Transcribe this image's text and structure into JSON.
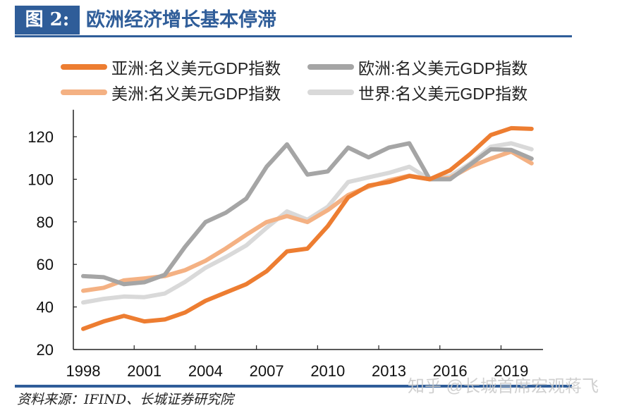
{
  "header": {
    "figure_label": "图 2:",
    "title": "欧洲经济增长基本停滞"
  },
  "footer": {
    "source": "资料来源：IFIND、长城证券研究院",
    "watermark": "知乎 @长城首席宏观蒋飞"
  },
  "chart_data": {
    "type": "line",
    "title": "",
    "xlabel": "",
    "ylabel": "",
    "ylim": [
      20,
      130
    ],
    "yticks": [
      20,
      40,
      60,
      80,
      100,
      120
    ],
    "x": [
      1998,
      1999,
      2000,
      2001,
      2002,
      2003,
      2004,
      2005,
      2006,
      2007,
      2008,
      2009,
      2010,
      2011,
      2012,
      2013,
      2014,
      2015,
      2016,
      2017,
      2018,
      2019,
      2020
    ],
    "xtick_labels": [
      "1998",
      "2001",
      "2004",
      "2007",
      "2010",
      "2013",
      "2016",
      "2019"
    ],
    "grid": false,
    "legend_position": "top",
    "series": [
      {
        "name": "亚洲:名义美元GDP指数",
        "color": "#ed7d31",
        "values": [
          29.7,
          33.2,
          35.8,
          33.2,
          34.1,
          37.4,
          42.9,
          46.8,
          50.7,
          56.8,
          66.1,
          67.4,
          78.0,
          91.5,
          97.0,
          98.7,
          101.5,
          100.0,
          104.2,
          112.0,
          120.8,
          124.0,
          123.7
        ]
      },
      {
        "name": "欧洲:名义美元GDP指数",
        "color": "#a5a5a5",
        "values": [
          54.5,
          54.0,
          50.7,
          51.6,
          55.1,
          68.3,
          79.9,
          84.3,
          90.9,
          105.9,
          116.4,
          102.2,
          103.7,
          114.9,
          110.3,
          114.9,
          116.9,
          100.0,
          100.0,
          107.0,
          114.1,
          113.8,
          109.7
        ]
      },
      {
        "name": "美洲:名义美元GDP指数",
        "color": "#f4b183",
        "values": [
          47.6,
          49.0,
          52.5,
          53.4,
          54.5,
          57.3,
          61.7,
          67.5,
          73.9,
          79.9,
          82.7,
          79.9,
          85.5,
          92.6,
          96.5,
          99.5,
          101.7,
          100.0,
          100.6,
          105.9,
          109.7,
          113.0,
          107.5
        ]
      },
      {
        "name": "世界:名义美元GDP指数",
        "color": "#d9d9d9",
        "values": [
          42.1,
          43.8,
          44.9,
          44.6,
          46.3,
          51.8,
          58.4,
          63.4,
          68.9,
          77.2,
          84.9,
          81.0,
          87.1,
          98.7,
          100.9,
          103.0,
          105.9,
          100.0,
          101.5,
          107.5,
          115.3,
          116.9,
          114.1
        ]
      }
    ]
  }
}
